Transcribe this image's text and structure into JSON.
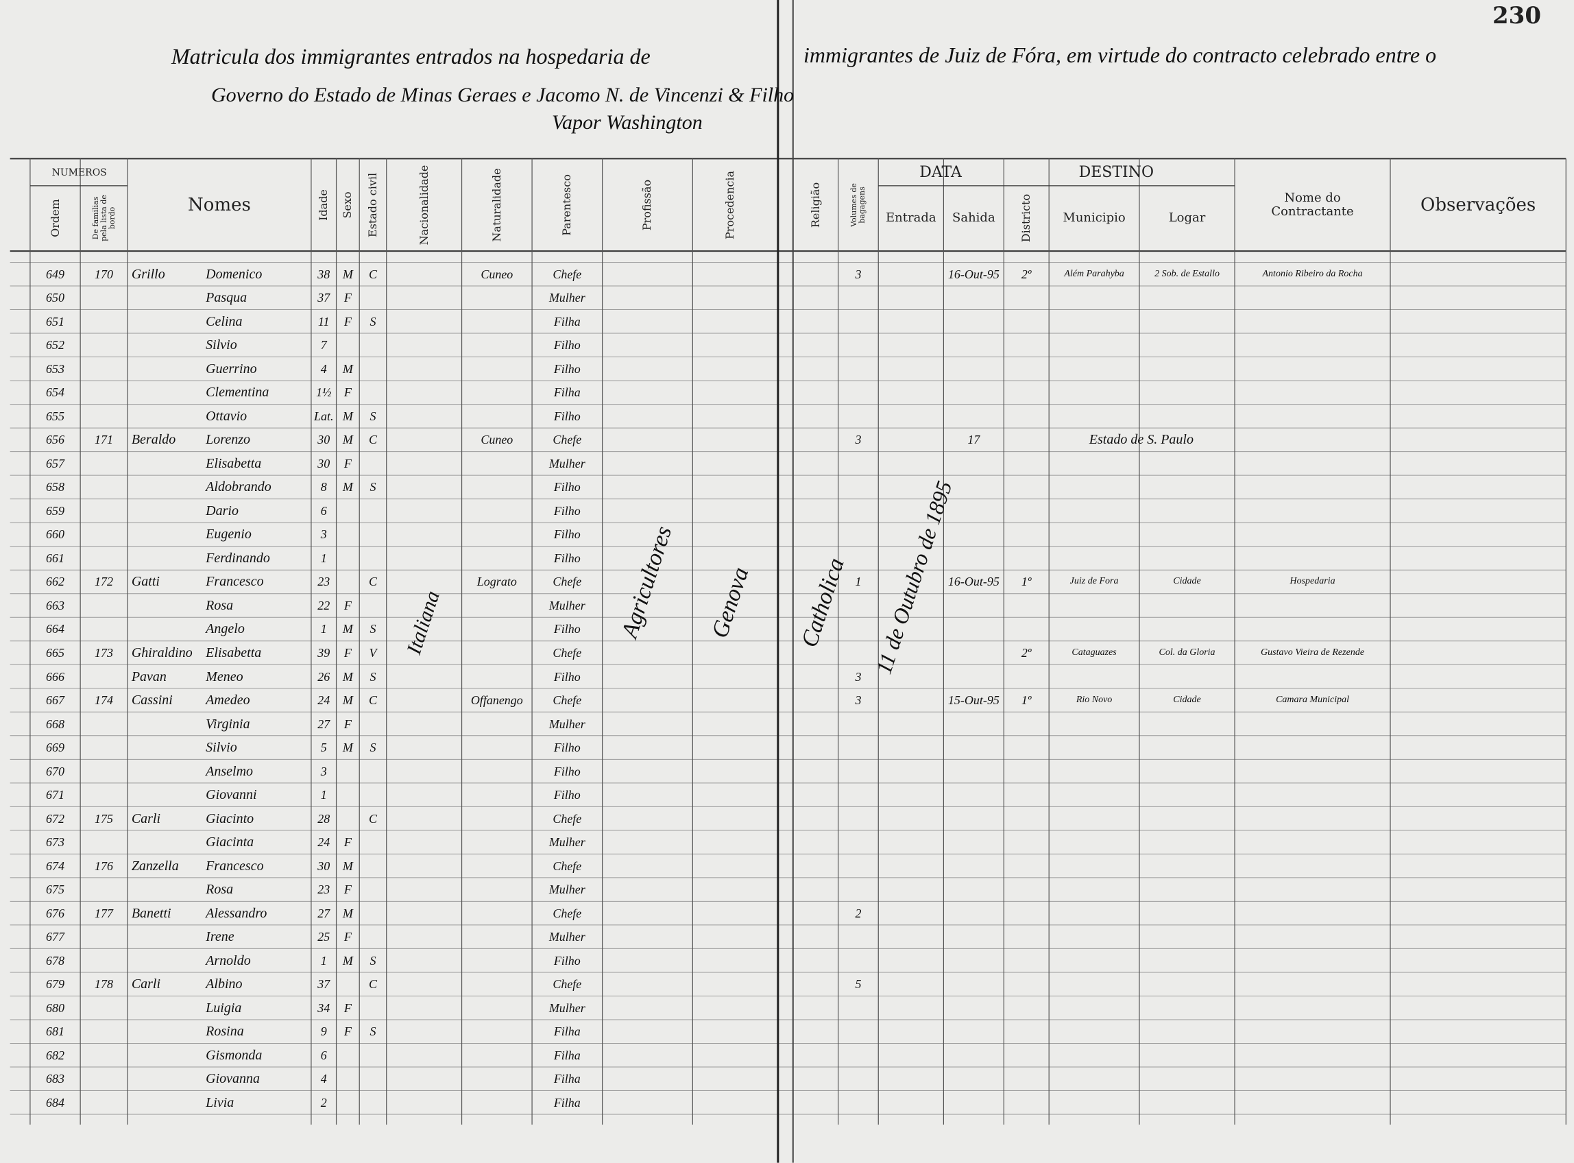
{
  "page_number": "230",
  "header": {
    "line1_left": "Matricula dos immigrantes entrados na hospedaria de",
    "line1_right": "immigrantes de Juiz de Fóra, em virtude do contracto celebrado entre o",
    "line2": "Governo do Estado de Minas Geraes e Jacomo N. de Vincenzi & Filho",
    "line3": "Vapor Washington"
  },
  "groups": [
    "NUMEROS",
    "DATA",
    "DESTINO"
  ],
  "columns": [
    "Ordem",
    "De familias pela lista de bordo",
    "Nomes",
    "Idade",
    "Sexo",
    "Estado civil",
    "Nacionalidade",
    "Naturalidade",
    "Parentesco",
    "Profissão",
    "Procedencia",
    "Religião",
    "Volumes de bagagens",
    "Entrada",
    "Sahida",
    "Districto",
    "Municipio",
    "Logar",
    "Nome do Contractante",
    "Observações"
  ],
  "rows": [
    {
      "ordem": "649",
      "familia": "170",
      "sobrenome": "Grillo",
      "nome": "Domenico",
      "idade": "38",
      "sexo": "M",
      "civil": "C",
      "naturalidade": "Cuneo",
      "parentesco": "Chefe",
      "volumes": "3",
      "sahida": "16-Out-95",
      "districto": "2º",
      "municipio": "Além Parahyba",
      "logar": "2 Sob. de Estallo",
      "contractante": "Antonio Ribeiro da Rocha"
    },
    {
      "ordem": "650",
      "nome": "Pasqua",
      "idade": "37",
      "sexo": "F",
      "parentesco": "Mulher"
    },
    {
      "ordem": "651",
      "nome": "Celina",
      "idade": "11",
      "sexo": "F",
      "civil": "S",
      "parentesco": "Filha"
    },
    {
      "ordem": "652",
      "nome": "Silvio",
      "idade": "7",
      "parentesco": "Filho"
    },
    {
      "ordem": "653",
      "nome": "Guerrino",
      "idade": "4",
      "sexo": "M",
      "parentesco": "Filho"
    },
    {
      "ordem": "654",
      "nome": "Clementina",
      "idade": "1½",
      "sexo": "F",
      "parentesco": "Filha"
    },
    {
      "ordem": "655",
      "nome": "Ottavio",
      "idade": "Lat.",
      "sexo": "M",
      "civil": "S",
      "parentesco": "Filho"
    },
    {
      "ordem": "656",
      "familia": "171",
      "sobrenome": "Beraldo",
      "nome": "Lorenzo",
      "idade": "30",
      "sexo": "M",
      "civil": "C",
      "naturalidade": "Cuneo",
      "parentesco": "Chefe",
      "volumes": "3",
      "sahida": "17",
      "destino": "Estado de S. Paulo"
    },
    {
      "ordem": "657",
      "nome": "Elisabetta",
      "idade": "30",
      "sexo": "F",
      "parentesco": "Mulher"
    },
    {
      "ordem": "658",
      "nome": "Aldobrando",
      "idade": "8",
      "sexo": "M",
      "civil": "S",
      "parentesco": "Filho"
    },
    {
      "ordem": "659",
      "nome": "Dario",
      "idade": "6",
      "parentesco": "Filho"
    },
    {
      "ordem": "660",
      "nome": "Eugenio",
      "idade": "3",
      "parentesco": "Filho"
    },
    {
      "ordem": "661",
      "nome": "Ferdinando",
      "idade": "1",
      "parentesco": "Filho"
    },
    {
      "ordem": "662",
      "familia": "172",
      "sobrenome": "Gatti",
      "nome": "Francesco",
      "idade": "23",
      "civil": "C",
      "naturalidade": "Lograto",
      "parentesco": "Chefe",
      "volumes": "1",
      "sahida": "16-Out-95",
      "districto": "1º",
      "municipio": "Juiz de Fora",
      "logar": "Cidade",
      "contractante": "Hospedaria"
    },
    {
      "ordem": "663",
      "nome": "Rosa",
      "idade": "22",
      "sexo": "F",
      "parentesco": "Mulher"
    },
    {
      "ordem": "664",
      "nome": "Angelo",
      "idade": "1",
      "sexo": "M",
      "civil": "S",
      "parentesco": "Filho"
    },
    {
      "ordem": "665",
      "familia": "173",
      "sobrenome": "Ghiraldino",
      "nome": "Elisabetta",
      "idade": "39",
      "sexo": "F",
      "civil": "V",
      "parentesco": "Chefe",
      "districto": "2º",
      "municipio": "Cataguazes",
      "logar": "Col. da Gloria",
      "contractante": "Gustavo Vieira de Rezende"
    },
    {
      "ordem": "666",
      "sobrenome": "Pavan",
      "nome": "Meneo",
      "idade": "26",
      "sexo": "M",
      "civil": "S",
      "parentesco": "Filho",
      "volumes": "3"
    },
    {
      "ordem": "667",
      "familia": "174",
      "sobrenome": "Cassini",
      "nome": "Amedeo",
      "idade": "24",
      "sexo": "M",
      "civil": "C",
      "naturalidade": "Offanengo",
      "parentesco": "Chefe",
      "volumes": "3",
      "sahida": "15-Out-95",
      "districto": "1º",
      "municipio": "Rio Novo",
      "logar": "Cidade",
      "contractante": "Camara Municipal"
    },
    {
      "ordem": "668",
      "nome": "Virginia",
      "idade": "27",
      "sexo": "F",
      "parentesco": "Mulher"
    },
    {
      "ordem": "669",
      "nome": "Silvio",
      "idade": "5",
      "sexo": "M",
      "civil": "S",
      "parentesco": "Filho"
    },
    {
      "ordem": "670",
      "nome": "Anselmo",
      "idade": "3",
      "parentesco": "Filho"
    },
    {
      "ordem": "671",
      "nome": "Giovanni",
      "idade": "1",
      "parentesco": "Filho"
    },
    {
      "ordem": "672",
      "familia": "175",
      "sobrenome": "Carli",
      "nome": "Giacinto",
      "idade": "28",
      "civil": "C",
      "parentesco": "Chefe"
    },
    {
      "ordem": "673",
      "nome": "Giacinta",
      "idade": "24",
      "sexo": "F",
      "parentesco": "Mulher"
    },
    {
      "ordem": "674",
      "familia": "176",
      "sobrenome": "Zanzella",
      "nome": "Francesco",
      "idade": "30",
      "sexo": "M",
      "parentesco": "Chefe"
    },
    {
      "ordem": "675",
      "nome": "Rosa",
      "idade": "23",
      "sexo": "F",
      "parentesco": "Mulher"
    },
    {
      "ordem": "676",
      "familia": "177",
      "sobrenome": "Banetti",
      "nome": "Alessandro",
      "idade": "27",
      "sexo": "M",
      "parentesco": "Chefe",
      "volumes": "2"
    },
    {
      "ordem": "677",
      "nome": "Irene",
      "idade": "25",
      "sexo": "F",
      "parentesco": "Mulher"
    },
    {
      "ordem": "678",
      "nome": "Arnoldo",
      "idade": "1",
      "sexo": "M",
      "civil": "S",
      "parentesco": "Filho"
    },
    {
      "ordem": "679",
      "familia": "178",
      "sobrenome": "Carli",
      "nome": "Albino",
      "idade": "37",
      "civil": "C",
      "parentesco": "Chefe",
      "volumes": "5"
    },
    {
      "ordem": "680",
      "nome": "Luigia",
      "idade": "34",
      "sexo": "F",
      "parentesco": "Mulher"
    },
    {
      "ordem": "681",
      "nome": "Rosina",
      "idade": "9",
      "sexo": "F",
      "civil": "S",
      "parentesco": "Filha"
    },
    {
      "ordem": "682",
      "nome": "Gismonda",
      "idade": "6",
      "parentesco": "Filha"
    },
    {
      "ordem": "683",
      "nome": "Giovanna",
      "idade": "4",
      "parentesco": "Filha"
    },
    {
      "ordem": "684",
      "nome": "Livia",
      "idade": "2",
      "parentesco": "Filha"
    }
  ],
  "annotations": [
    "Italiana",
    "Agricultores",
    "Genova",
    "Catholica",
    "11 de Outubro de 1895"
  ]
}
